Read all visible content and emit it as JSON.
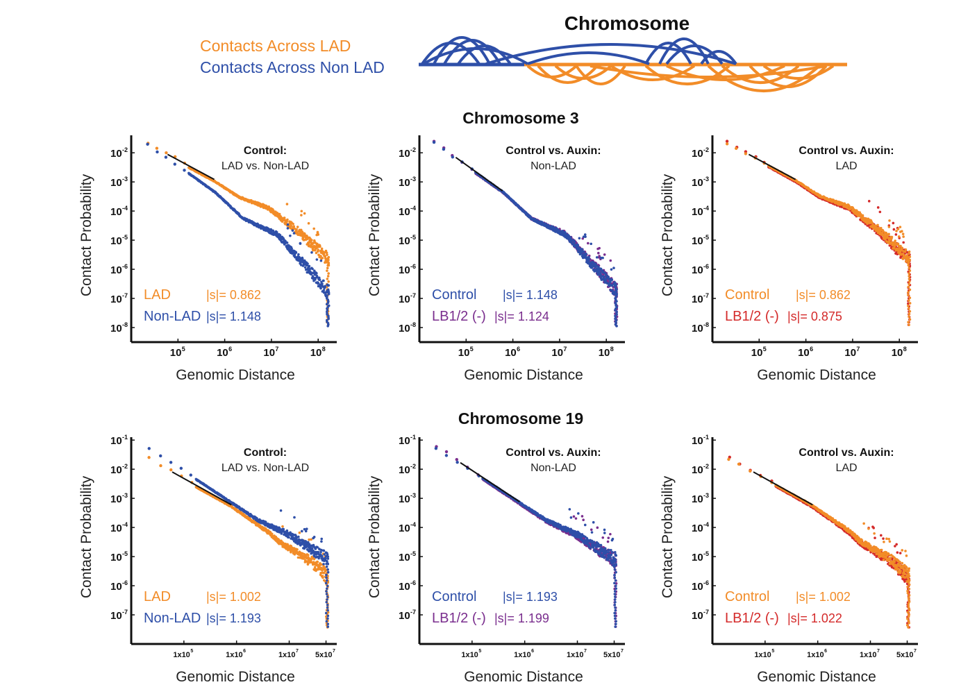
{
  "schematic": {
    "title": "Chromosome",
    "legend": [
      {
        "label": "Contacts Across LAD",
        "color": "#F28C28"
      },
      {
        "label": "Contacts Across Non LAD",
        "color": "#2E4FA8"
      }
    ]
  },
  "colors": {
    "lad": "#F28C28",
    "nonlad": "#2E4FA8",
    "lb12_purple": "#7A2E8E",
    "lb12_red": "#D42A2A",
    "fit": "#111111"
  },
  "rows": [
    {
      "title": "Chromosome 3"
    },
    {
      "title": "Chromosome 19"
    }
  ],
  "chart_data": [
    {
      "type": "scatter",
      "row": 0,
      "col": 0,
      "title_line1": "Control:",
      "title_line2": "LAD vs. Non-LAD",
      "xlabel": "Genomic Distance",
      "ylabel": "Contact Probability",
      "xscale": "log",
      "yscale": "log",
      "xlim": [
        10000,
        250000000
      ],
      "ylim_exp": [
        -8.5,
        -1.4
      ],
      "yticks": [
        {
          "exp": "-2"
        },
        {
          "exp": "-3"
        },
        {
          "exp": "-4"
        },
        {
          "exp": "-5"
        },
        {
          "exp": "-6"
        },
        {
          "exp": "-7"
        },
        {
          "exp": "-8"
        }
      ],
      "xticks": [
        {
          "pre": "10",
          "exp": "5"
        },
        {
          "pre": "10",
          "exp": "6"
        },
        {
          "pre": "10",
          "exp": "7"
        },
        {
          "pre": "10",
          "exp": "8"
        }
      ],
      "xmax": 170000000,
      "series": [
        {
          "name": "LAD",
          "color": "#F28C28",
          "s_label": "|s|= 0.862",
          "slope": -0.862,
          "y_at_1e5": 0.0053,
          "features": "chr3-lad"
        },
        {
          "name": "Non-LAD",
          "color": "#2E4FA8",
          "s_label": "|s|= 1.148",
          "slope": -1.148,
          "y_at_1e5": 0.0036,
          "features": "chr3-nonlad"
        }
      ],
      "fit_range": [
        60000,
        600000
      ]
    },
    {
      "type": "scatter",
      "row": 0,
      "col": 1,
      "title_line1": "Control vs. Auxin:",
      "title_line2": "Non-LAD",
      "xlabel": "Genomic Distance",
      "ylabel": "Contact Probability",
      "xscale": "log",
      "yscale": "log",
      "xlim": [
        10000,
        250000000
      ],
      "ylim_exp": [
        -8.5,
        -1.4
      ],
      "yticks": [
        {
          "exp": "-2"
        },
        {
          "exp": "-3"
        },
        {
          "exp": "-4"
        },
        {
          "exp": "-5"
        },
        {
          "exp": "-6"
        },
        {
          "exp": "-7"
        },
        {
          "exp": "-8"
        }
      ],
      "xticks": [
        {
          "pre": "10",
          "exp": "5"
        },
        {
          "pre": "10",
          "exp": "6"
        },
        {
          "pre": "10",
          "exp": "7"
        },
        {
          "pre": "10",
          "exp": "8"
        }
      ],
      "xmax": 170000000,
      "series": [
        {
          "name": "LB1/2 (-)",
          "color": "#7A2E8E",
          "s_label": "|s|= 1.124",
          "slope": -1.124,
          "y_at_1e5": 0.0036,
          "features": "chr3-nonlad"
        },
        {
          "name": "Control",
          "color": "#2E4FA8",
          "s_label": "|s|= 1.148",
          "slope": -1.148,
          "y_at_1e5": 0.0036,
          "features": "chr3-nonlad"
        }
      ],
      "fit_range": [
        60000,
        600000
      ]
    },
    {
      "type": "scatter",
      "row": 0,
      "col": 2,
      "title_line1": "Control vs. Auxin:",
      "title_line2": "LAD",
      "xlabel": "Genomic Distance",
      "ylabel": "Contact Probability",
      "xscale": "log",
      "yscale": "log",
      "xlim": [
        10000,
        250000000
      ],
      "ylim_exp": [
        -8.5,
        -1.4
      ],
      "yticks": [
        {
          "exp": "-2"
        },
        {
          "exp": "-3"
        },
        {
          "exp": "-4"
        },
        {
          "exp": "-5"
        },
        {
          "exp": "-6"
        },
        {
          "exp": "-7"
        },
        {
          "exp": "-8"
        }
      ],
      "xticks": [
        {
          "pre": "10",
          "exp": "5"
        },
        {
          "pre": "10",
          "exp": "6"
        },
        {
          "pre": "10",
          "exp": "7"
        },
        {
          "pre": "10",
          "exp": "8"
        }
      ],
      "xmax": 170000000,
      "series": [
        {
          "name": "LB1/2 (-)",
          "color": "#D42A2A",
          "s_label": "|s|= 0.875",
          "slope": -0.875,
          "y_at_1e5": 0.0053,
          "features": "chr3-lad"
        },
        {
          "name": "Control",
          "color": "#F28C28",
          "s_label": "|s|= 0.862",
          "slope": -0.862,
          "y_at_1e5": 0.0053,
          "features": "chr3-lad"
        }
      ],
      "fit_range": [
        60000,
        600000
      ]
    },
    {
      "type": "scatter",
      "row": 1,
      "col": 0,
      "title_line1": "Control:",
      "title_line2": "LAD vs. Non-LAD",
      "xlabel": "Genomic Distance",
      "ylabel": "Contact Probability",
      "xscale": "log",
      "yscale": "log",
      "xlim": [
        10000,
        80000000
      ],
      "ylim_exp": [
        -8.0,
        -0.9
      ],
      "yticks": [
        {
          "exp": "-1"
        },
        {
          "exp": "-2"
        },
        {
          "exp": "-3"
        },
        {
          "exp": "-4"
        },
        {
          "exp": "-5"
        },
        {
          "exp": "-6"
        },
        {
          "exp": "-7"
        }
      ],
      "xticks": [
        {
          "pre": "1x10",
          "exp": "5"
        },
        {
          "pre": "1x10",
          "exp": "6"
        },
        {
          "pre": "1x10",
          "exp": "7"
        },
        {
          "pre": "5x10",
          "exp": "7"
        }
      ],
      "xmax": 55000000,
      "series": [
        {
          "name": "LAD",
          "color": "#F28C28",
          "s_label": "|s|= 1.002",
          "slope": -1.002,
          "y_at_1e5": 0.0045,
          "features": "chr19-lad"
        },
        {
          "name": "Non-LAD",
          "color": "#2E4FA8",
          "s_label": "|s|= 1.193",
          "slope": -1.193,
          "y_at_1e5": 0.0085,
          "features": "chr19-nonlad"
        }
      ],
      "fit_range": [
        60000,
        800000
      ]
    },
    {
      "type": "scatter",
      "row": 1,
      "col": 1,
      "title_line1": "Control vs. Auxin:",
      "title_line2": "Non-LAD",
      "xlabel": "Genomic Distance",
      "ylabel": "Contact Probability",
      "xscale": "log",
      "yscale": "log",
      "xlim": [
        10000,
        80000000
      ],
      "ylim_exp": [
        -8.0,
        -0.9
      ],
      "yticks": [
        {
          "exp": "-1"
        },
        {
          "exp": "-2"
        },
        {
          "exp": "-3"
        },
        {
          "exp": "-4"
        },
        {
          "exp": "-5"
        },
        {
          "exp": "-6"
        },
        {
          "exp": "-7"
        }
      ],
      "xticks": [
        {
          "pre": "1x10",
          "exp": "5"
        },
        {
          "pre": "1x10",
          "exp": "6"
        },
        {
          "pre": "1x10",
          "exp": "7"
        },
        {
          "pre": "5x10",
          "exp": "7"
        }
      ],
      "xmax": 55000000,
      "series": [
        {
          "name": "LB1/2 (-)",
          "color": "#7A2E8E",
          "s_label": "|s|= 1.199",
          "slope": -1.199,
          "y_at_1e5": 0.0085,
          "features": "chr19-nonlad"
        },
        {
          "name": "Control",
          "color": "#2E4FA8",
          "s_label": "|s|= 1.193",
          "slope": -1.193,
          "y_at_1e5": 0.0085,
          "features": "chr19-nonlad"
        }
      ],
      "fit_range": [
        60000,
        800000
      ]
    },
    {
      "type": "scatter",
      "row": 1,
      "col": 2,
      "title_line1": "Control vs. Auxin:",
      "title_line2": "LAD",
      "xlabel": "Genomic Distance",
      "ylabel": "Contact Probability",
      "xscale": "log",
      "yscale": "log",
      "xlim": [
        10000,
        80000000
      ],
      "ylim_exp": [
        -8.0,
        -0.9
      ],
      "yticks": [
        {
          "exp": "-1"
        },
        {
          "exp": "-2"
        },
        {
          "exp": "-3"
        },
        {
          "exp": "-4"
        },
        {
          "exp": "-5"
        },
        {
          "exp": "-6"
        },
        {
          "exp": "-7"
        }
      ],
      "xticks": [
        {
          "pre": "1x10",
          "exp": "5"
        },
        {
          "pre": "1x10",
          "exp": "6"
        },
        {
          "pre": "1x10",
          "exp": "7"
        },
        {
          "pre": "5x10",
          "exp": "7"
        }
      ],
      "xmax": 55000000,
      "series": [
        {
          "name": "LB1/2 (-)",
          "color": "#D42A2A",
          "s_label": "|s|= 1.022",
          "slope": -1.022,
          "y_at_1e5": 0.0045,
          "features": "chr19-lad"
        },
        {
          "name": "Control",
          "color": "#F28C28",
          "s_label": "|s|= 1.002",
          "slope": -1.002,
          "y_at_1e5": 0.0045,
          "features": "chr19-lad"
        }
      ],
      "fit_range": [
        60000,
        800000
      ]
    }
  ]
}
